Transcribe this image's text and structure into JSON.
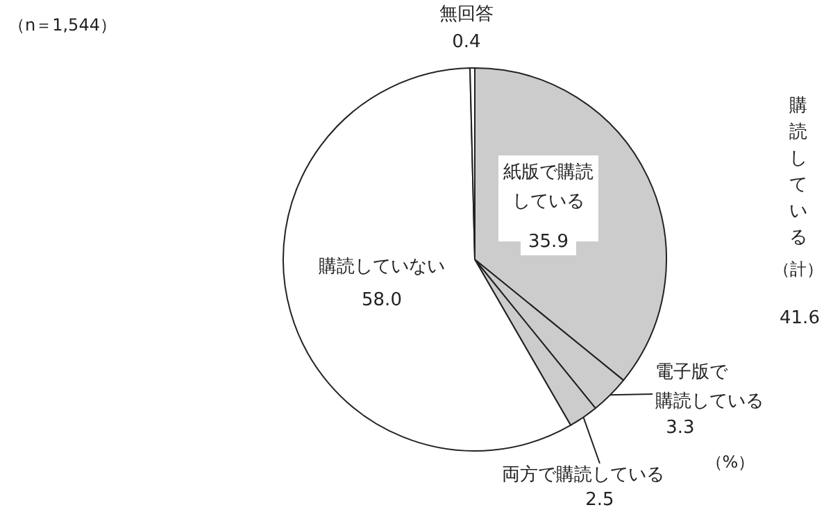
{
  "chart_data": {
    "type": "pie",
    "categories": [
      "紙版で購読している",
      "電子版で購読している",
      "両方で購読している",
      "購読していない",
      "無回答"
    ],
    "values": [
      35.9,
      3.3,
      2.5,
      58.0,
      0.4
    ],
    "colors": [
      "#cccccc",
      "#cccccc",
      "#cccccc",
      "#ffffff",
      "#ffffff"
    ],
    "value_labels": [
      "35.9",
      "3.3",
      "2.5",
      "58.0",
      "0.4"
    ],
    "annotations": [
      "（n＝1,544）",
      "（%）",
      "購読している（計）",
      "41.6"
    ]
  }
}
